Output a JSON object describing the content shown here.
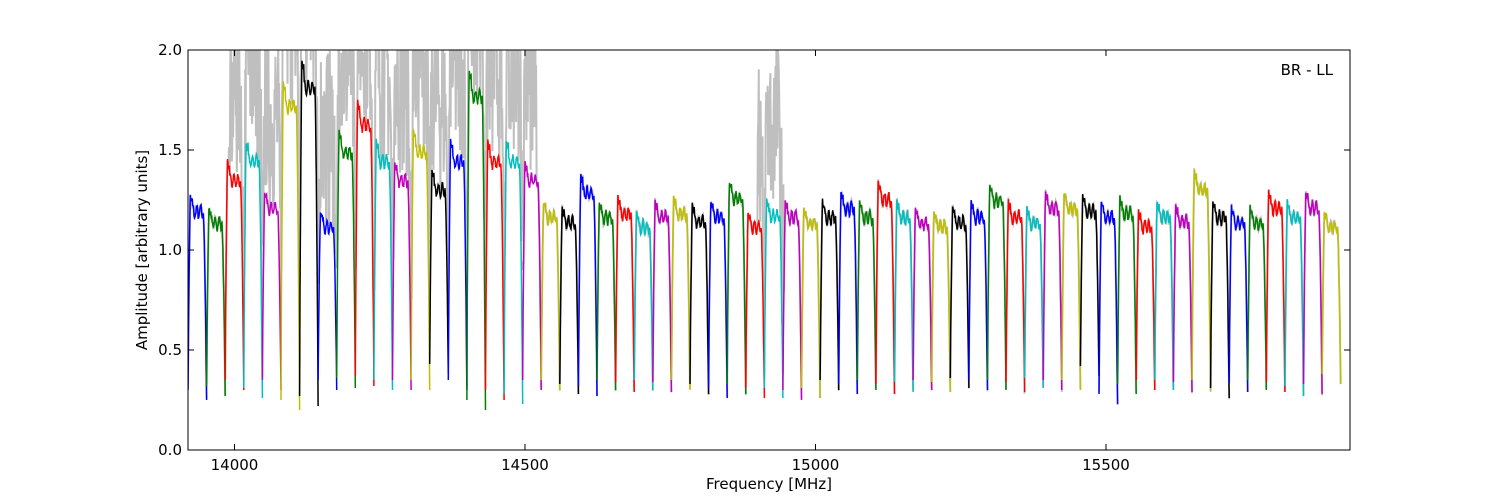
{
  "chart_data": {
    "type": "line",
    "annotation": "BR - LL",
    "xlabel": "Frequency [MHz]",
    "ylabel": "Amplitude [arbitrary units]",
    "xlim": [
      13920,
      15920
    ],
    "ylim": [
      0.0,
      2.0
    ],
    "xticks": [
      14000,
      14500,
      15000,
      15500
    ],
    "xtick_labels": [
      "14000",
      "14500",
      "15000",
      "15500"
    ],
    "yticks": [
      0.0,
      0.5,
      1.0,
      1.5,
      2.0
    ],
    "ytick_labels": [
      "0.0",
      "0.5",
      "1.0",
      "1.5",
      "2.0"
    ],
    "grid": false,
    "color_cycle": [
      "#0000ff",
      "#007f00",
      "#ff0000",
      "#00bfbf",
      "#bf00bf",
      "#bfbf00",
      "#000000"
    ],
    "background_trace_color": "#bfbfbf",
    "channel_width_mhz": 32,
    "channel_start_mhz": 13920,
    "channel_count": 62,
    "channel_peak_amplitude": [
      1.28,
      1.22,
      1.45,
      1.55,
      1.3,
      1.85,
      1.95,
      1.2,
      1.6,
      1.75,
      1.55,
      1.45,
      1.6,
      1.4,
      1.55,
      1.9,
      1.55,
      1.55,
      1.45,
      1.25,
      1.22,
      1.38,
      1.25,
      1.27,
      1.2,
      1.25,
      1.27,
      1.23,
      1.25,
      1.35,
      1.2,
      1.26,
      1.25,
      1.22,
      1.25,
      1.3,
      1.25,
      1.35,
      1.25,
      1.22,
      1.2,
      1.22,
      1.25,
      1.34,
      1.25,
      1.22,
      1.3,
      1.3,
      1.28,
      1.25,
      1.27,
      1.2,
      1.25,
      1.23,
      1.4,
      1.25,
      1.22,
      1.22,
      1.3,
      1.25,
      1.3,
      1.2
    ],
    "channel_edge_minimum": [
      0.25,
      0.27,
      0.3,
      0.26,
      0.3,
      0.2,
      0.22,
      0.3,
      0.31,
      0.32,
      0.3,
      0.3,
      0.3,
      0.38,
      0.3,
      0.2,
      0.25,
      0.23,
      0.3,
      0.3,
      0.28,
      0.27,
      0.3,
      0.29,
      0.3,
      0.29,
      0.3,
      0.28,
      0.26,
      0.28,
      0.26,
      0.26,
      0.25,
      0.26,
      0.3,
      0.28,
      0.3,
      0.28,
      0.29,
      0.3,
      0.29,
      0.31,
      0.3,
      0.3,
      0.29,
      0.31,
      0.3,
      0.3,
      0.37,
      0.23,
      0.28,
      0.3,
      0.3,
      0.29,
      0.3,
      0.26,
      0.29,
      0.3,
      0.29,
      0.27,
      0.28,
      0.33
    ]
  }
}
